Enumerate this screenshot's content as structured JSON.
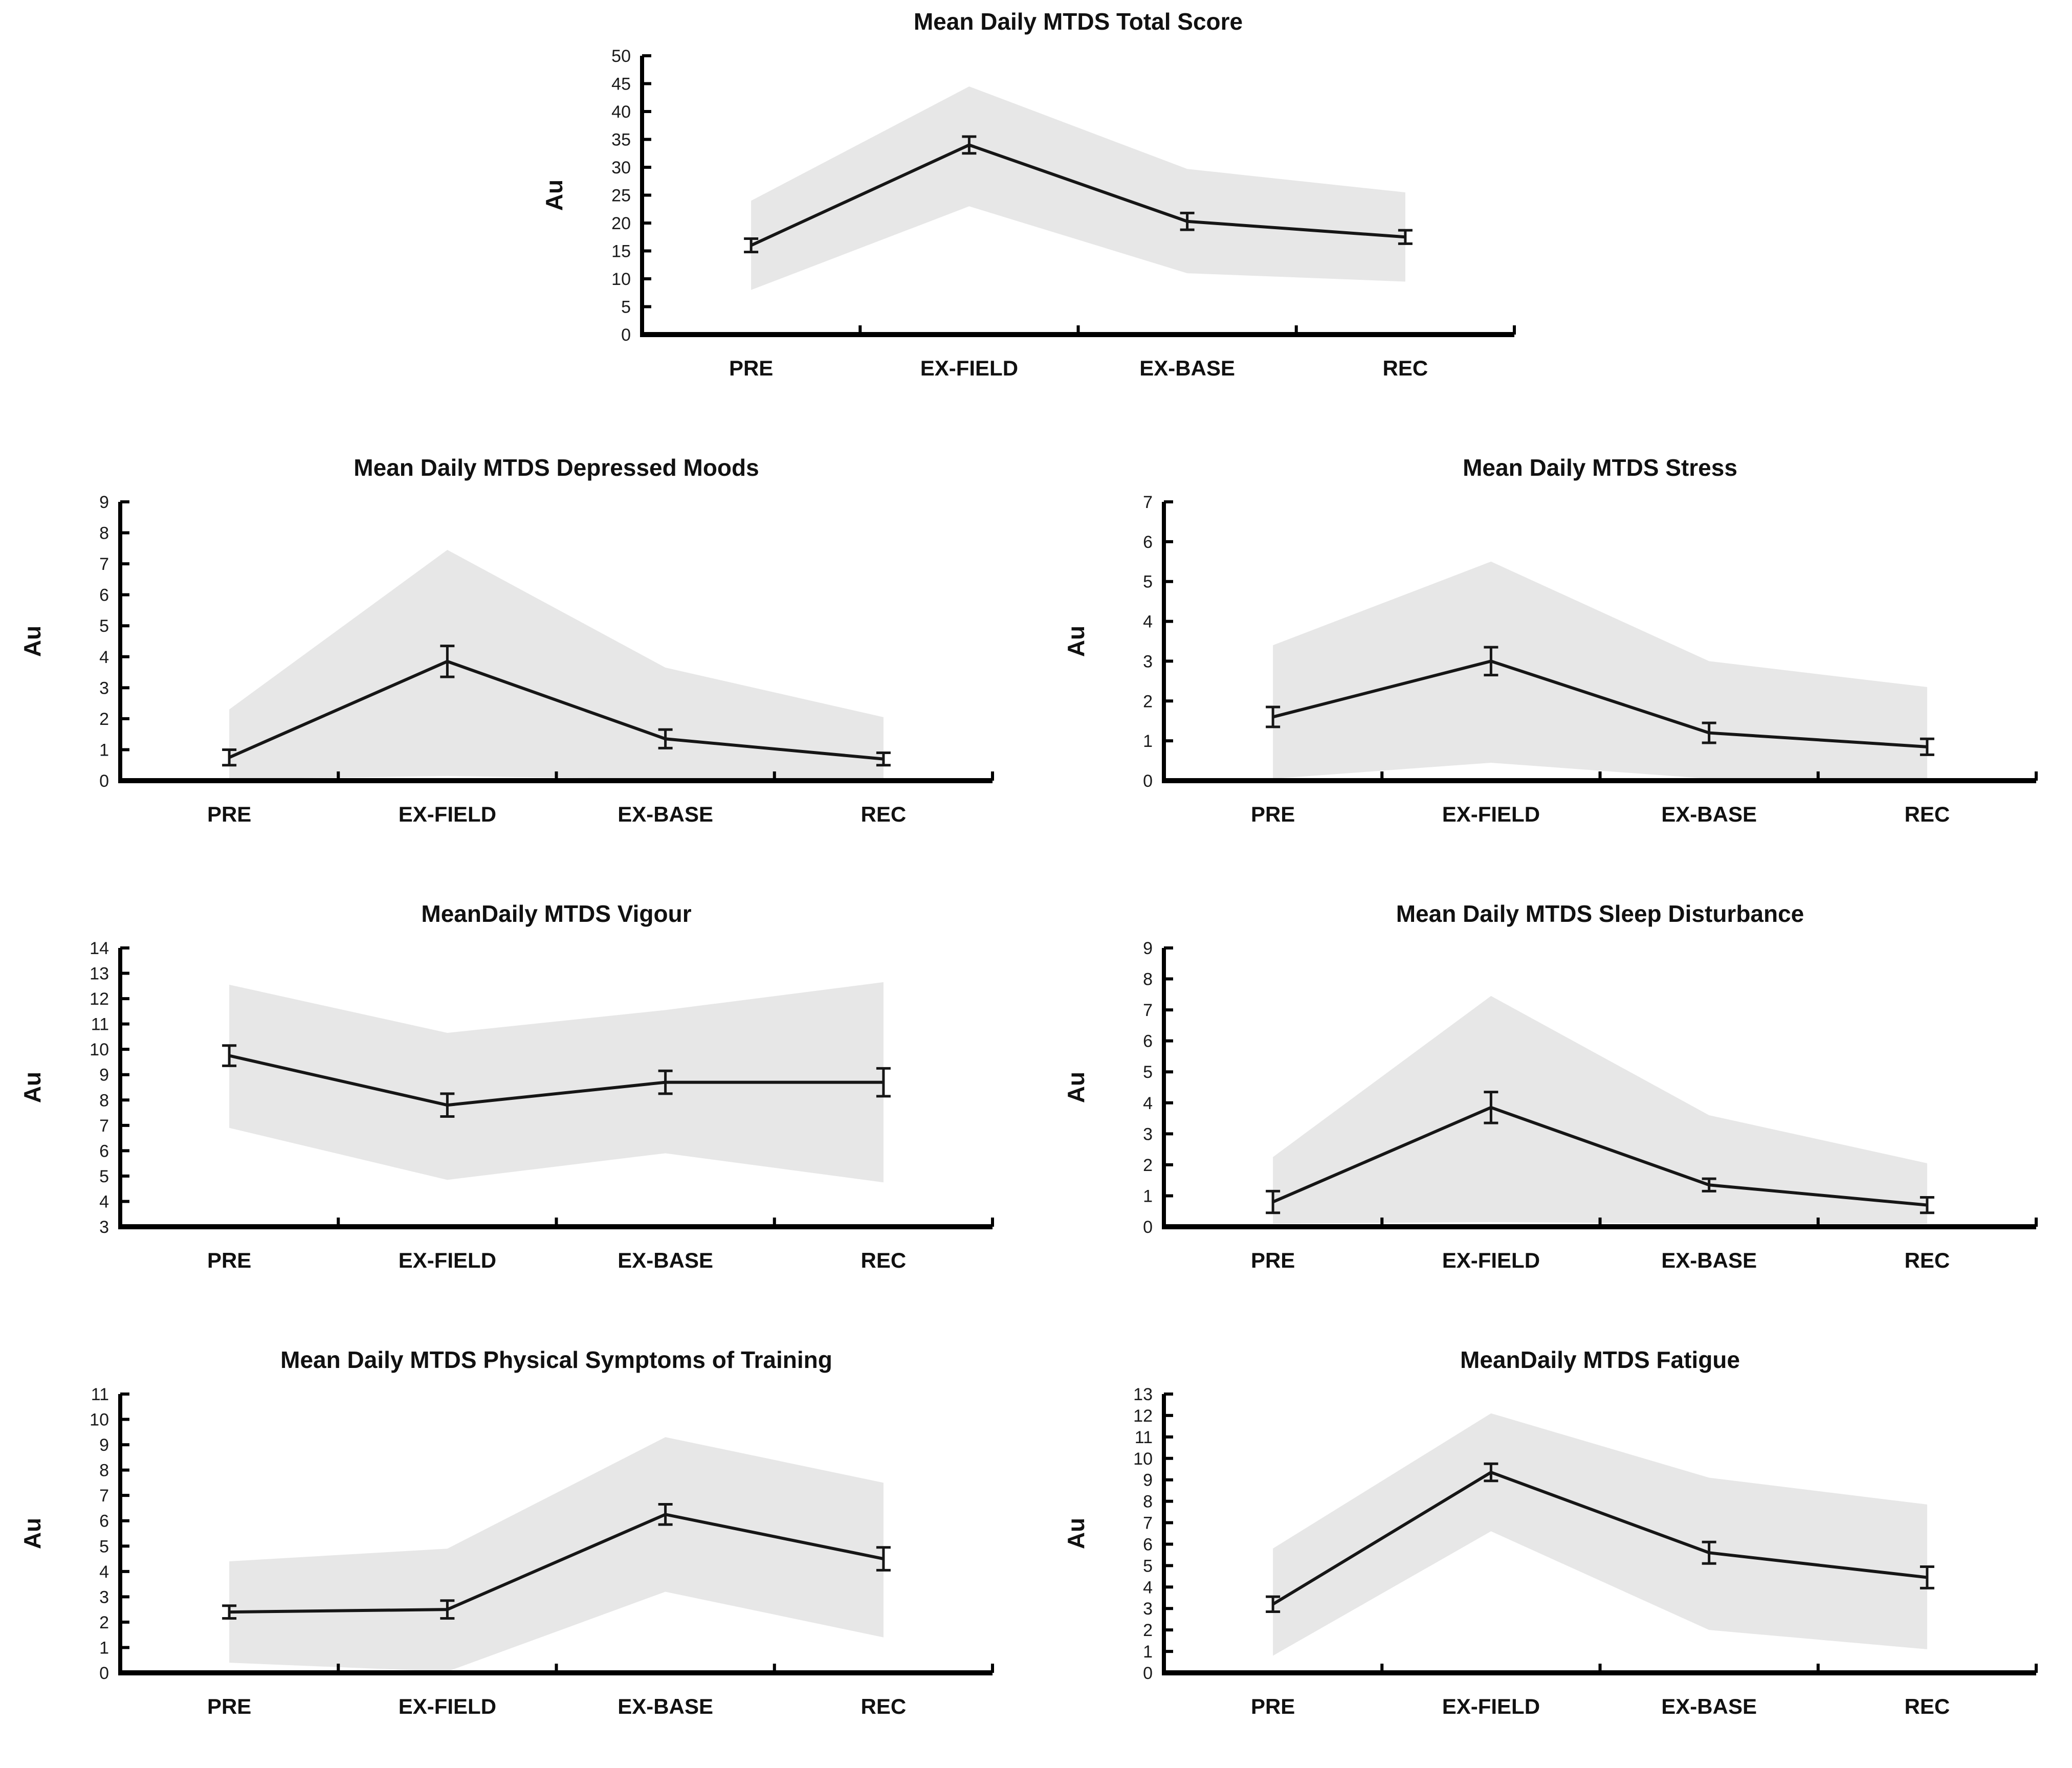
{
  "figure": {
    "background": "#ffffff",
    "panel_count": 7
  },
  "shared": {
    "categories": [
      "PRE",
      "EX-FIELD",
      "EX-BASE",
      "REC"
    ],
    "ylabel": "Au",
    "band_color": "#e7e7e7",
    "line_color": "#161616",
    "axis_color": "#000000",
    "text_color": "#1a1a1a"
  },
  "chart_data": [
    {
      "type": "line",
      "title": "Mean Daily MTDS Total Score",
      "xlabel": "",
      "ylabel": "Au",
      "categories": [
        "PRE",
        "EX-FIELD",
        "EX-BASE",
        "REC"
      ],
      "values": [
        16,
        34,
        20.3,
        17.5
      ],
      "errors": [
        1.2,
        1.5,
        1.5,
        1.2
      ],
      "band_upper": [
        24,
        44.5,
        29.7,
        25.5
      ],
      "band_lower": [
        8,
        23,
        11,
        9.5
      ],
      "ylim": [
        0,
        50
      ],
      "ytick_step": 5,
      "grid": false,
      "legend": "none"
    },
    {
      "type": "line",
      "title": "Mean Daily MTDS Depressed Moods",
      "xlabel": "",
      "ylabel": "Au",
      "categories": [
        "PRE",
        "EX-FIELD",
        "EX-BASE",
        "REC"
      ],
      "values": [
        0.75,
        3.85,
        1.35,
        0.7
      ],
      "errors": [
        0.25,
        0.5,
        0.3,
        0.2
      ],
      "band_upper": [
        2.3,
        7.45,
        3.65,
        2.05
      ],
      "band_lower": [
        0.05,
        0.15,
        0.05,
        0.05
      ],
      "ylim": [
        0,
        9
      ],
      "ytick_step": 1,
      "grid": false,
      "legend": "none"
    },
    {
      "type": "line",
      "title": "Mean Daily MTDS Stress",
      "xlabel": "",
      "ylabel": "Au",
      "categories": [
        "PRE",
        "EX-FIELD",
        "EX-BASE",
        "REC"
      ],
      "values": [
        1.6,
        3.0,
        1.2,
        0.85
      ],
      "errors": [
        0.25,
        0.35,
        0.25,
        0.2
      ],
      "band_upper": [
        3.4,
        5.5,
        3.0,
        2.35
      ],
      "band_lower": [
        0.05,
        0.45,
        0.05,
        0.05
      ],
      "ylim": [
        0,
        7
      ],
      "ytick_step": 1,
      "grid": false,
      "legend": "none"
    },
    {
      "type": "line",
      "title": "MeanDaily MTDS Vigour",
      "xlabel": "",
      "ylabel": "Au",
      "categories": [
        "PRE",
        "EX-FIELD",
        "EX-BASE",
        "REC"
      ],
      "values": [
        9.75,
        7.8,
        8.7,
        8.7
      ],
      "errors": [
        0.4,
        0.45,
        0.45,
        0.55
      ],
      "band_upper": [
        12.55,
        10.65,
        11.55,
        12.65
      ],
      "band_lower": [
        6.9,
        4.85,
        5.9,
        4.75
      ],
      "ylim": [
        3,
        14
      ],
      "ytick_step": 1,
      "grid": false,
      "legend": "none"
    },
    {
      "type": "line",
      "title": "Mean Daily MTDS Sleep Disturbance",
      "xlabel": "",
      "ylabel": "Au",
      "categories": [
        "PRE",
        "EX-FIELD",
        "EX-BASE",
        "REC"
      ],
      "values": [
        0.8,
        3.85,
        1.35,
        0.7
      ],
      "errors": [
        0.35,
        0.5,
        0.2,
        0.25
      ],
      "band_upper": [
        2.25,
        7.45,
        3.6,
        2.05
      ],
      "band_lower": [
        0.1,
        0.15,
        0.1,
        0.1
      ],
      "ylim": [
        0,
        9
      ],
      "ytick_step": 1,
      "grid": false,
      "legend": "none"
    },
    {
      "type": "line",
      "title": "Mean Daily MTDS Physical Symptoms of Training",
      "xlabel": "",
      "ylabel": "Au",
      "categories": [
        "PRE",
        "EX-FIELD",
        "EX-BASE",
        "REC"
      ],
      "values": [
        2.4,
        2.5,
        6.25,
        4.5
      ],
      "errors": [
        0.25,
        0.35,
        0.4,
        0.45
      ],
      "band_upper": [
        4.4,
        4.9,
        9.3,
        7.5
      ],
      "band_lower": [
        0.4,
        0.05,
        3.2,
        1.4
      ],
      "ylim": [
        0,
        11
      ],
      "ytick_step": 1,
      "grid": false,
      "legend": "none"
    },
    {
      "type": "line",
      "title": "MeanDaily MTDS Fatigue",
      "xlabel": "",
      "ylabel": "Au",
      "categories": [
        "PRE",
        "EX-FIELD",
        "EX-BASE",
        "REC"
      ],
      "values": [
        3.2,
        9.35,
        5.6,
        4.45
      ],
      "errors": [
        0.35,
        0.4,
        0.5,
        0.5
      ],
      "band_upper": [
        5.8,
        12.1,
        9.1,
        7.85
      ],
      "band_lower": [
        0.8,
        6.6,
        2.0,
        1.1
      ],
      "ylim": [
        0,
        13
      ],
      "ytick_step": 1,
      "grid": false,
      "legend": "none"
    }
  ]
}
